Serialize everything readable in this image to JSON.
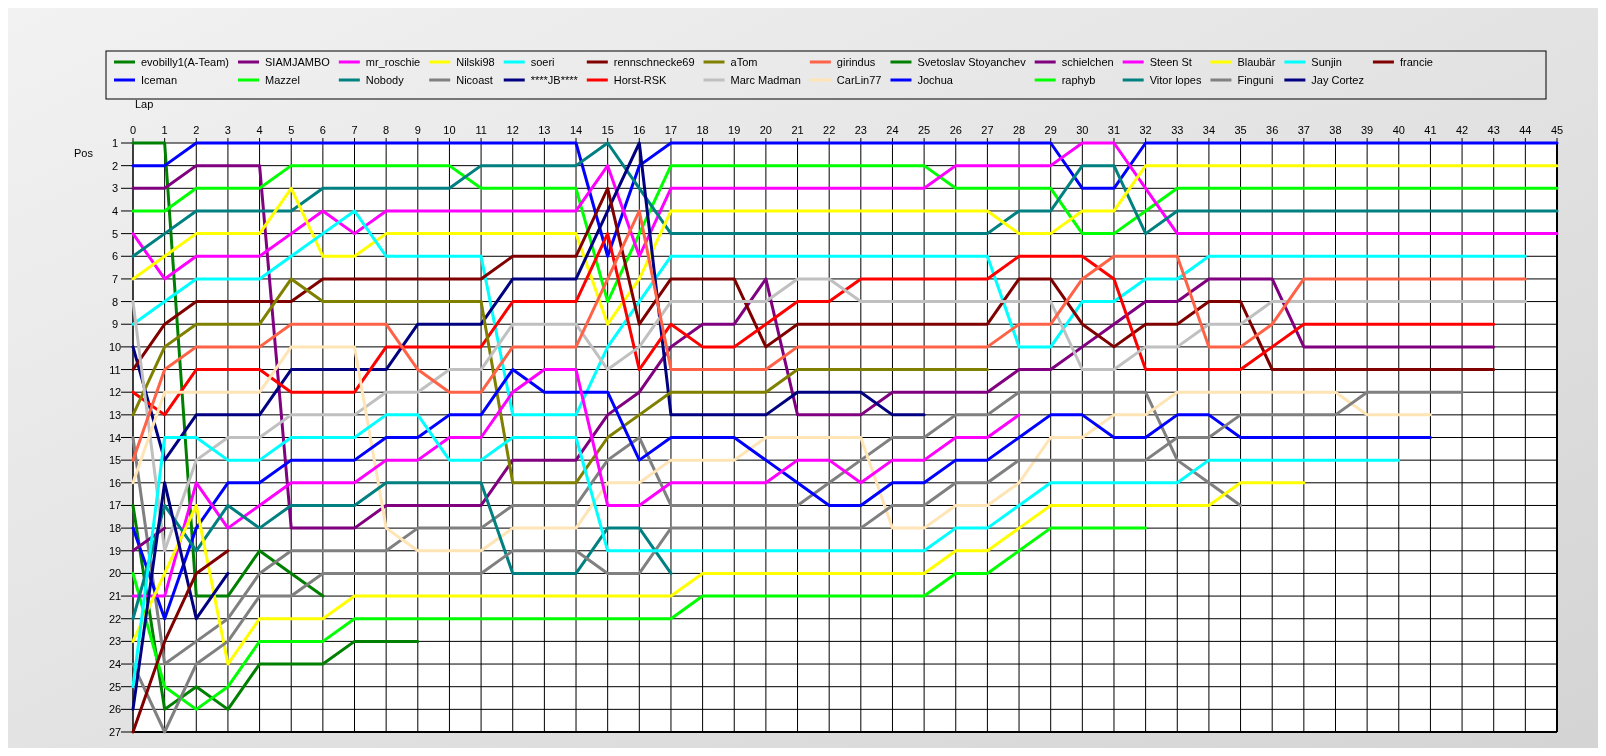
{
  "chart_data": {
    "type": "line",
    "xlabel": "Lap",
    "ylabel": "Pos",
    "legend": "top",
    "grid": true,
    "x": [
      0,
      1,
      2,
      3,
      4,
      5,
      6,
      7,
      8,
      9,
      10,
      11,
      12,
      13,
      14,
      15,
      16,
      17,
      18,
      19,
      20,
      21,
      22,
      23,
      24,
      25,
      26,
      27,
      28,
      29,
      30,
      31,
      32,
      33,
      34,
      35,
      36,
      37,
      38,
      39,
      40,
      41,
      42,
      43,
      44,
      45
    ],
    "xlim": [
      0,
      45
    ],
    "xticks": [
      0,
      1,
      2,
      3,
      4,
      5,
      6,
      7,
      8,
      9,
      10,
      11,
      12,
      13,
      14,
      15,
      16,
      17,
      18,
      19,
      20,
      21,
      22,
      23,
      24,
      25,
      26,
      27,
      28,
      29,
      30,
      31,
      32,
      33,
      34,
      35,
      36,
      37,
      38,
      39,
      40,
      41,
      42,
      43,
      44,
      45
    ],
    "ylim": [
      27,
      1
    ],
    "yticks": [
      1,
      2,
      3,
      4,
      5,
      6,
      7,
      8,
      9,
      10,
      11,
      12,
      13,
      14,
      15,
      16,
      17,
      18,
      19,
      20,
      21,
      22,
      23,
      24,
      25,
      26,
      27
    ],
    "series": [
      {
        "name": "evobilly1(A-Team)",
        "color": "#008000",
        "values": [
          1,
          1,
          21,
          21,
          19,
          20,
          21,
          null,
          null,
          null,
          null,
          null,
          null,
          null,
          null,
          null,
          null,
          null,
          null,
          null,
          null,
          null,
          null,
          null,
          null,
          null,
          null,
          null,
          null,
          null,
          null,
          null,
          null,
          null,
          null,
          null,
          null,
          null,
          null,
          null,
          null,
          null,
          null,
          null,
          null,
          null
        ]
      },
      {
        "name": "Iceman",
        "color": "#0000ff",
        "values": [
          2,
          2,
          1,
          1,
          1,
          1,
          1,
          1,
          1,
          1,
          1,
          1,
          1,
          1,
          1,
          6,
          2,
          1,
          1,
          1,
          1,
          1,
          1,
          1,
          1,
          1,
          1,
          1,
          1,
          1,
          3,
          3,
          1,
          1,
          1,
          1,
          1,
          1,
          1,
          1,
          1,
          1,
          1,
          1,
          1,
          1
        ]
      },
      {
        "name": "SIAMJAMBO",
        "color": "#800080",
        "values": [
          3,
          3,
          2,
          2,
          2,
          18,
          18,
          18,
          17,
          17,
          17,
          17,
          15,
          15,
          15,
          13,
          12,
          10,
          9,
          9,
          7,
          13,
          13,
          13,
          12,
          12,
          12,
          12,
          11,
          11,
          10,
          9,
          8,
          8,
          7,
          7,
          7,
          10,
          10,
          10,
          10,
          10,
          10,
          10,
          null,
          null
        ]
      },
      {
        "name": "Mazzel",
        "color": "#00ff00",
        "values": [
          4,
          4,
          3,
          3,
          3,
          2,
          2,
          2,
          2,
          2,
          2,
          3,
          3,
          3,
          3,
          8,
          5,
          2,
          2,
          2,
          2,
          2,
          2,
          2,
          2,
          2,
          3,
          3,
          3,
          3,
          5,
          5,
          4,
          3,
          3,
          3,
          3,
          3,
          3,
          3,
          3,
          3,
          3,
          3,
          3,
          3
        ]
      },
      {
        "name": "mr_roschie",
        "color": "#ff00ff",
        "values": [
          5,
          7,
          6,
          6,
          6,
          5,
          4,
          5,
          4,
          4,
          4,
          4,
          4,
          4,
          4,
          2,
          6,
          3,
          3,
          3,
          3,
          3,
          3,
          3,
          3,
          3,
          2,
          2,
          2,
          2,
          1,
          1,
          3,
          5,
          5,
          5,
          5,
          5,
          5,
          5,
          5,
          5,
          5,
          5,
          5,
          5
        ]
      },
      {
        "name": "Nobody",
        "color": "#008080",
        "values": [
          6,
          5,
          4,
          4,
          4,
          4,
          3,
          3,
          3,
          3,
          3,
          2,
          2,
          2,
          2,
          1,
          3,
          5,
          5,
          5,
          5,
          5,
          5,
          5,
          5,
          5,
          5,
          5,
          4,
          4,
          2,
          2,
          5,
          4,
          4,
          4,
          4,
          4,
          4,
          4,
          4,
          4,
          4,
          4,
          4,
          4
        ]
      },
      {
        "name": "Nilski98",
        "color": "#ffff00",
        "values": [
          7,
          6,
          5,
          5,
          5,
          3,
          6,
          6,
          5,
          5,
          5,
          5,
          5,
          5,
          5,
          9,
          7,
          4,
          4,
          4,
          4,
          4,
          4,
          4,
          4,
          4,
          4,
          4,
          5,
          5,
          4,
          4,
          2,
          2,
          2,
          2,
          2,
          2,
          2,
          2,
          2,
          2,
          2,
          2,
          2,
          2
        ]
      },
      {
        "name": "Nicoast",
        "color": "#808080",
        "values": [
          14,
          24,
          23,
          22,
          20,
          19,
          19,
          19,
          19,
          18,
          18,
          18,
          17,
          17,
          17,
          15,
          14,
          17,
          17,
          17,
          17,
          17,
          16,
          15,
          14,
          14,
          13,
          13,
          12,
          12,
          12,
          12,
          12,
          15,
          16,
          17,
          null,
          null,
          null,
          null,
          null,
          null,
          null,
          null,
          null,
          null
        ]
      },
      {
        "name": "soeri",
        "color": "#00ffff",
        "values": [
          9,
          8,
          7,
          7,
          7,
          6,
          5,
          4,
          6,
          6,
          6,
          6,
          13,
          13,
          13,
          10,
          8,
          6,
          6,
          6,
          6,
          6,
          6,
          6,
          6,
          6,
          6,
          6,
          10,
          10,
          8,
          8,
          7,
          7,
          6,
          6,
          6,
          6,
          6,
          6,
          6,
          6,
          6,
          6,
          6,
          null
        ]
      },
      {
        "name": "****JB****",
        "color": "#000080",
        "values": [
          10,
          15,
          13,
          13,
          13,
          11,
          11,
          11,
          11,
          9,
          9,
          9,
          7,
          7,
          7,
          4,
          1,
          13,
          13,
          13,
          13,
          12,
          12,
          12,
          13,
          13,
          null,
          null,
          null,
          null,
          null,
          null,
          null,
          null,
          null,
          null,
          null,
          null,
          null,
          null,
          null,
          null,
          null,
          null,
          null,
          null
        ]
      },
      {
        "name": "rennschnecke69",
        "color": "#800000",
        "values": [
          11,
          9,
          8,
          8,
          8,
          8,
          7,
          7,
          7,
          7,
          7,
          7,
          6,
          6,
          6,
          3,
          9,
          7,
          7,
          7,
          10,
          9,
          9,
          9,
          9,
          9,
          9,
          9,
          7,
          7,
          9,
          10,
          9,
          9,
          8,
          8,
          11,
          11,
          11,
          11,
          11,
          11,
          11,
          11,
          null,
          null
        ]
      },
      {
        "name": "Horst-RSK",
        "color": "#ff0000",
        "values": [
          12,
          13,
          11,
          11,
          11,
          12,
          12,
          12,
          10,
          10,
          10,
          10,
          8,
          8,
          8,
          5,
          11,
          9,
          10,
          10,
          9,
          8,
          8,
          7,
          7,
          7,
          7,
          7,
          6,
          6,
          6,
          7,
          11,
          11,
          11,
          11,
          10,
          9,
          9,
          9,
          9,
          9,
          9,
          9,
          null,
          null
        ]
      },
      {
        "name": "aTom",
        "color": "#808000",
        "values": [
          13,
          10,
          9,
          9,
          9,
          7,
          8,
          8,
          8,
          8,
          8,
          8,
          16,
          16,
          16,
          14,
          13,
          12,
          12,
          12,
          12,
          11,
          11,
          11,
          11,
          11,
          11,
          11,
          null,
          null,
          null,
          null,
          null,
          null,
          null,
          null,
          null,
          null,
          null,
          null,
          null,
          null,
          null,
          null,
          null,
          null
        ]
      },
      {
        "name": "Marc Madman",
        "color": "#c0c0c0",
        "values": [
          8,
          19,
          15,
          14,
          14,
          13,
          13,
          13,
          12,
          12,
          11,
          11,
          9,
          9,
          9,
          11,
          10,
          8,
          8,
          8,
          8,
          7,
          7,
          8,
          8,
          8,
          8,
          8,
          8,
          8,
          11,
          11,
          10,
          10,
          9,
          9,
          8,
          8,
          8,
          8,
          8,
          8,
          8,
          8,
          8,
          null
        ]
      },
      {
        "name": "girindus",
        "color": "#ff6347",
        "values": [
          15,
          11,
          10,
          10,
          10,
          9,
          9,
          9,
          9,
          11,
          12,
          12,
          10,
          10,
          10,
          7,
          4,
          11,
          11,
          11,
          11,
          10,
          10,
          10,
          10,
          10,
          10,
          10,
          9,
          9,
          7,
          6,
          6,
          6,
          10,
          10,
          9,
          7,
          7,
          7,
          7,
          7,
          7,
          7,
          7,
          null
        ]
      },
      {
        "name": "CarLin77",
        "color": "#ffe4b5",
        "values": [
          16,
          12,
          12,
          12,
          12,
          10,
          10,
          10,
          18,
          19,
          19,
          19,
          18,
          18,
          18,
          16,
          16,
          15,
          15,
          15,
          14,
          14,
          14,
          14,
          18,
          18,
          17,
          17,
          16,
          14,
          14,
          13,
          13,
          12,
          12,
          12,
          12,
          12,
          12,
          13,
          13,
          13,
          null,
          null,
          null,
          null
        ]
      },
      {
        "name": "Svetoslav Stoyanchev",
        "color": "#008000",
        "values": [
          17,
          26,
          25,
          26,
          24,
          24,
          24,
          23,
          23,
          23,
          null,
          null,
          null,
          null,
          null,
          null,
          null,
          null,
          null,
          null,
          null,
          null,
          null,
          null,
          null,
          null,
          null,
          null,
          null,
          null,
          null,
          null,
          null,
          null,
          null,
          null,
          null,
          null,
          null,
          null,
          null,
          null,
          null,
          null,
          null,
          null
        ]
      },
      {
        "name": "Jochua",
        "color": "#0000ff",
        "values": [
          18,
          22,
          18,
          16,
          16,
          15,
          15,
          15,
          14,
          14,
          13,
          13,
          11,
          12,
          12,
          12,
          15,
          14,
          14,
          14,
          15,
          16,
          17,
          17,
          16,
          16,
          15,
          15,
          14,
          13,
          13,
          14,
          14,
          13,
          13,
          14,
          14,
          14,
          14,
          14,
          14,
          14,
          null,
          null,
          null,
          null
        ]
      },
      {
        "name": "schielchen",
        "color": "#800080",
        "values": [
          19,
          18,
          null,
          null,
          null,
          null,
          null,
          null,
          null,
          null,
          null,
          null,
          null,
          null,
          null,
          null,
          null,
          null,
          null,
          null,
          null,
          null,
          null,
          null,
          null,
          null,
          null,
          null,
          null,
          null,
          null,
          null,
          null,
          null,
          null,
          null,
          null,
          null,
          null,
          null,
          null,
          null,
          null,
          null,
          null,
          null
        ]
      },
      {
        "name": "raphyb",
        "color": "#00ff00",
        "values": [
          20,
          25,
          26,
          25,
          23,
          23,
          23,
          22,
          22,
          22,
          22,
          22,
          22,
          22,
          22,
          22,
          22,
          22,
          21,
          21,
          21,
          21,
          21,
          21,
          21,
          21,
          20,
          20,
          19,
          18,
          18,
          18,
          18,
          null,
          null,
          null,
          null,
          null,
          null,
          null,
          null,
          null,
          null,
          null,
          null,
          null
        ]
      },
      {
        "name": "Steen St",
        "color": "#ff00ff",
        "values": [
          21,
          21,
          16,
          18,
          17,
          16,
          16,
          16,
          15,
          15,
          14,
          14,
          12,
          11,
          11,
          17,
          17,
          16,
          16,
          16,
          16,
          15,
          15,
          16,
          15,
          15,
          14,
          14,
          13,
          null,
          null,
          null,
          null,
          null,
          null,
          null,
          null,
          null,
          null,
          null,
          null,
          null,
          null,
          null,
          null,
          null
        ]
      },
      {
        "name": "Vitor lopes",
        "color": "#008080",
        "values": [
          22,
          17,
          19,
          17,
          18,
          17,
          17,
          17,
          16,
          16,
          16,
          16,
          20,
          20,
          20,
          18,
          18,
          20,
          null,
          null,
          null,
          null,
          null,
          null,
          null,
          null,
          null,
          null,
          null,
          null,
          null,
          null,
          null,
          null,
          null,
          null,
          null,
          null,
          null,
          null,
          null,
          null,
          null,
          null,
          null,
          null
        ]
      },
      {
        "name": "Blaubär",
        "color": "#ffff00",
        "values": [
          23,
          20,
          17,
          24,
          22,
          22,
          22,
          21,
          21,
          21,
          21,
          21,
          21,
          21,
          21,
          21,
          21,
          21,
          20,
          20,
          20,
          20,
          20,
          20,
          20,
          20,
          19,
          19,
          18,
          17,
          17,
          17,
          17,
          17,
          17,
          16,
          16,
          16,
          null,
          null,
          null,
          null,
          null,
          null,
          null,
          null
        ]
      },
      {
        "name": "Finguni",
        "color": "#808080",
        "values": [
          24,
          27,
          24,
          23,
          21,
          21,
          20,
          20,
          20,
          20,
          20,
          20,
          19,
          19,
          19,
          20,
          20,
          18,
          18,
          18,
          18,
          18,
          18,
          18,
          17,
          17,
          16,
          16,
          15,
          15,
          15,
          15,
          15,
          14,
          14,
          13,
          13,
          13,
          13,
          12,
          12,
          12,
          12,
          null,
          null,
          null
        ]
      },
      {
        "name": "Sunjin",
        "color": "#00ffff",
        "values": [
          25,
          14,
          14,
          15,
          15,
          14,
          14,
          14,
          13,
          13,
          15,
          15,
          14,
          14,
          14,
          19,
          19,
          19,
          19,
          19,
          19,
          19,
          19,
          19,
          19,
          19,
          18,
          18,
          17,
          16,
          16,
          16,
          16,
          16,
          15,
          15,
          15,
          15,
          15,
          15,
          15,
          null,
          null,
          null,
          null,
          null
        ]
      },
      {
        "name": "Jay Cortez",
        "color": "#000080",
        "values": [
          26,
          16,
          22,
          20,
          null,
          null,
          null,
          null,
          null,
          null,
          null,
          null,
          null,
          null,
          null,
          null,
          null,
          null,
          null,
          null,
          null,
          null,
          null,
          null,
          null,
          null,
          null,
          null,
          null,
          null,
          null,
          null,
          null,
          null,
          null,
          null,
          null,
          null,
          null,
          null,
          null,
          null,
          null,
          null,
          null,
          null
        ]
      },
      {
        "name": "francie",
        "color": "#800000",
        "values": [
          27,
          23,
          20,
          19,
          null,
          null,
          null,
          null,
          null,
          null,
          null,
          null,
          null,
          null,
          null,
          null,
          null,
          null,
          null,
          null,
          null,
          null,
          null,
          null,
          null,
          null,
          null,
          null,
          null,
          null,
          null,
          null,
          null,
          null,
          null,
          null,
          null,
          null,
          null,
          null,
          null,
          null,
          null,
          null,
          null,
          null
        ]
      }
    ]
  }
}
